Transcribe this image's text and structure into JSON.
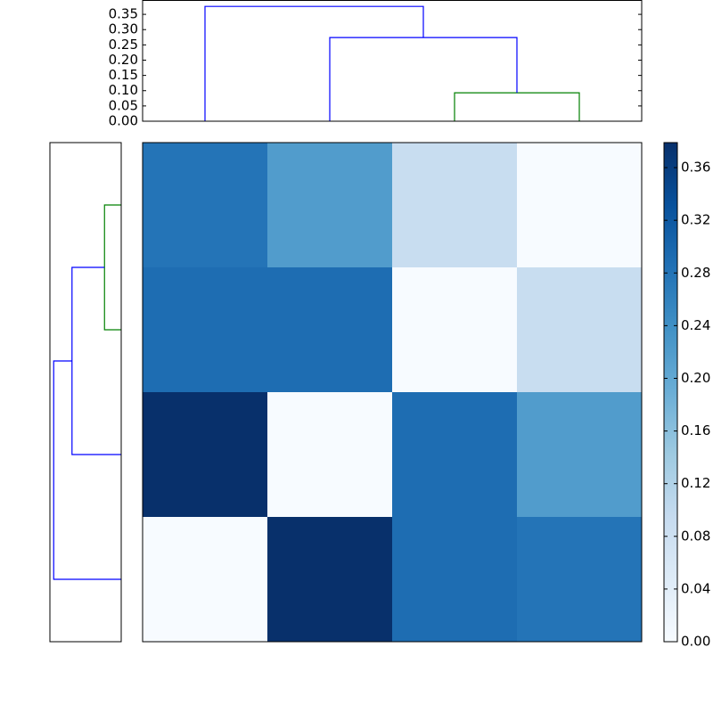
{
  "chart_data": [
    {
      "type": "heatmap",
      "colormap": "Blues",
      "values": [
        [
          0.28,
          0.22,
          0.09,
          0.0
        ],
        [
          0.29,
          0.29,
          0.0,
          0.09
        ],
        [
          0.38,
          0.0,
          0.29,
          0.22
        ],
        [
          0.0,
          0.38,
          0.29,
          0.28
        ]
      ],
      "clim": [
        0,
        0.379
      ],
      "cticks": [
        {
          "value": 0,
          "label": "0.00"
        },
        {
          "value": 0.04,
          "label": "0.04"
        },
        {
          "value": 0.08,
          "label": "0.08"
        },
        {
          "value": 0.12,
          "label": "0.12"
        },
        {
          "value": 0.16,
          "label": "0.16"
        },
        {
          "value": 0.2,
          "label": "0.20"
        },
        {
          "value": 0.24,
          "label": "0.24"
        },
        {
          "value": 0.28,
          "label": "0.28"
        },
        {
          "value": 0.32,
          "label": "0.32"
        },
        {
          "value": 0.36,
          "label": "0.36"
        }
      ]
    },
    {
      "type": "dendrogram",
      "orientation": "top",
      "ylim": [
        0,
        0.397
      ],
      "yticks": [
        {
          "value": 0,
          "label": "0.00"
        },
        {
          "value": 0.05,
          "label": "0.05"
        },
        {
          "value": 0.1,
          "label": "0.10"
        },
        {
          "value": 0.15,
          "label": "0.15"
        },
        {
          "value": 0.2,
          "label": "0.20"
        },
        {
          "value": 0.25,
          "label": "0.25"
        },
        {
          "value": 0.3,
          "label": "0.30"
        },
        {
          "value": 0.35,
          "label": "0.35"
        }
      ],
      "links": [
        {
          "color": "#008000",
          "pos": [
            2,
            2,
            3,
            3
          ],
          "dist": [
            0,
            0.093,
            0.093,
            0
          ]
        },
        {
          "color": "#0000ff",
          "pos": [
            1,
            1,
            2.5,
            2.5
          ],
          "dist": [
            0,
            0.274,
            0.274,
            0.093
          ]
        },
        {
          "color": "#0000ff",
          "pos": [
            0,
            0,
            1.75,
            1.75
          ],
          "dist": [
            0,
            0.376,
            0.376,
            0.274
          ]
        }
      ]
    },
    {
      "type": "dendrogram",
      "orientation": "left",
      "xlim": [
        0.397,
        0
      ],
      "links": [
        {
          "color": "#008000",
          "pos": [
            0,
            0,
            1,
            1
          ],
          "dist": [
            0,
            0.093,
            0.093,
            0
          ]
        },
        {
          "color": "#0000ff",
          "pos": [
            0.5,
            0.5,
            2,
            2
          ],
          "dist": [
            0.093,
            0.274,
            0.274,
            0
          ]
        },
        {
          "color": "#0000ff",
          "pos": [
            1.25,
            1.25,
            3,
            3
          ],
          "dist": [
            0.274,
            0.376,
            0.376,
            0
          ]
        }
      ]
    }
  ]
}
